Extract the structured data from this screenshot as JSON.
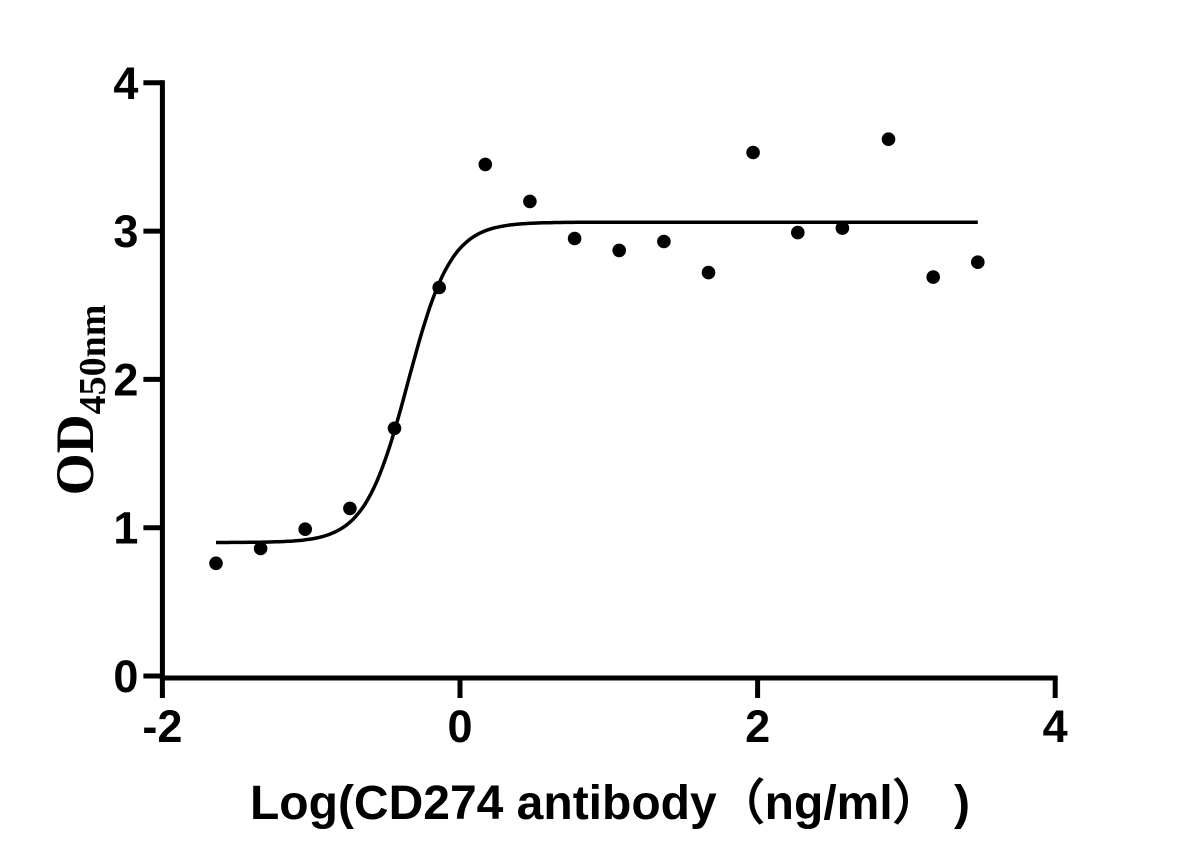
{
  "figure": {
    "background": "#ffffff",
    "ink": "#000000"
  },
  "chart_data": {
    "type": "scatter",
    "title": "",
    "xlabel": "Log(CD274 antibody（ng/ml） )",
    "ylabel_main": "OD",
    "ylabel_sub": "450nm",
    "xlim": [
      -2,
      4
    ],
    "ylim": [
      0,
      4
    ],
    "xticks": [
      -2,
      0,
      2,
      4
    ],
    "yticks": [
      0,
      1,
      2,
      3,
      4
    ],
    "grid": false,
    "legend": "none",
    "points": {
      "x": [
        -1.64,
        -1.34,
        -1.04,
        -0.74,
        -0.44,
        -0.14,
        0.17,
        0.47,
        0.77,
        1.07,
        1.37,
        1.67,
        1.97,
        2.27,
        2.57,
        2.88,
        3.18,
        3.48
      ],
      "y": [
        0.76,
        0.86,
        0.99,
        1.13,
        1.67,
        2.62,
        3.45,
        3.2,
        2.95,
        2.87,
        2.93,
        2.72,
        3.53,
        2.99,
        3.02,
        3.62,
        2.69,
        2.79
      ]
    },
    "fit_curve": {
      "model": "4PL sigmoid",
      "bottom": 0.9,
      "top": 3.06,
      "log_ec50": -0.35,
      "hill_slope": 3.0,
      "x_start": -1.64,
      "x_end": 3.49
    },
    "marker": {
      "shape": "circle",
      "color": "#000000",
      "radius_px": 6.8
    }
  }
}
